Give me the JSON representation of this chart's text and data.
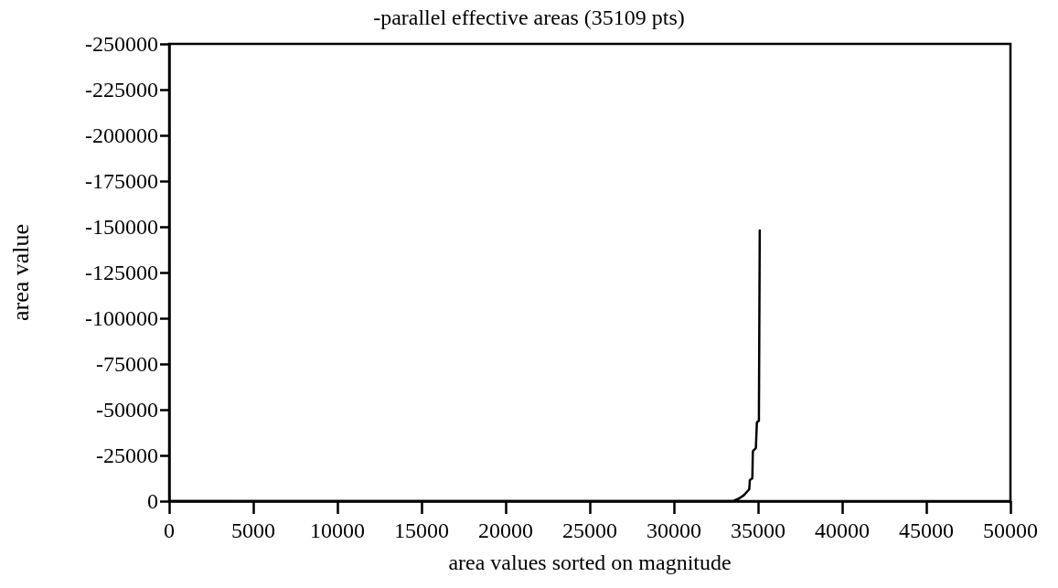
{
  "chart_data": {
    "type": "line",
    "title": "-parallel effective areas (35109 pts)",
    "xlabel": "area values sorted on magnitude",
    "ylabel": "area value",
    "x": [
      0,
      33520,
      33880,
      34150,
      34480,
      34510,
      34660,
      34690,
      34870,
      34930,
      35050,
      35100
    ],
    "series": [
      {
        "color": "#000000",
        "values": [
          0,
          0,
          -1500,
          -3200,
          -6500,
          -11500,
          -12500,
          -27300,
          -29000,
          -43000,
          -44000,
          -148000
        ]
      }
    ],
    "xlim": [
      0,
      50000
    ],
    "xticks": [
      0,
      5000,
      10000,
      15000,
      20000,
      25000,
      30000,
      35000,
      40000,
      45000,
      50000
    ],
    "ylim": [
      0,
      -250000
    ],
    "yticks": [
      0,
      -25000,
      -50000,
      -75000,
      -100000,
      -125000,
      -150000,
      -175000,
      -200000,
      -225000,
      -250000
    ],
    "grid": false,
    "marker": "none",
    "line_style": "solid"
  }
}
